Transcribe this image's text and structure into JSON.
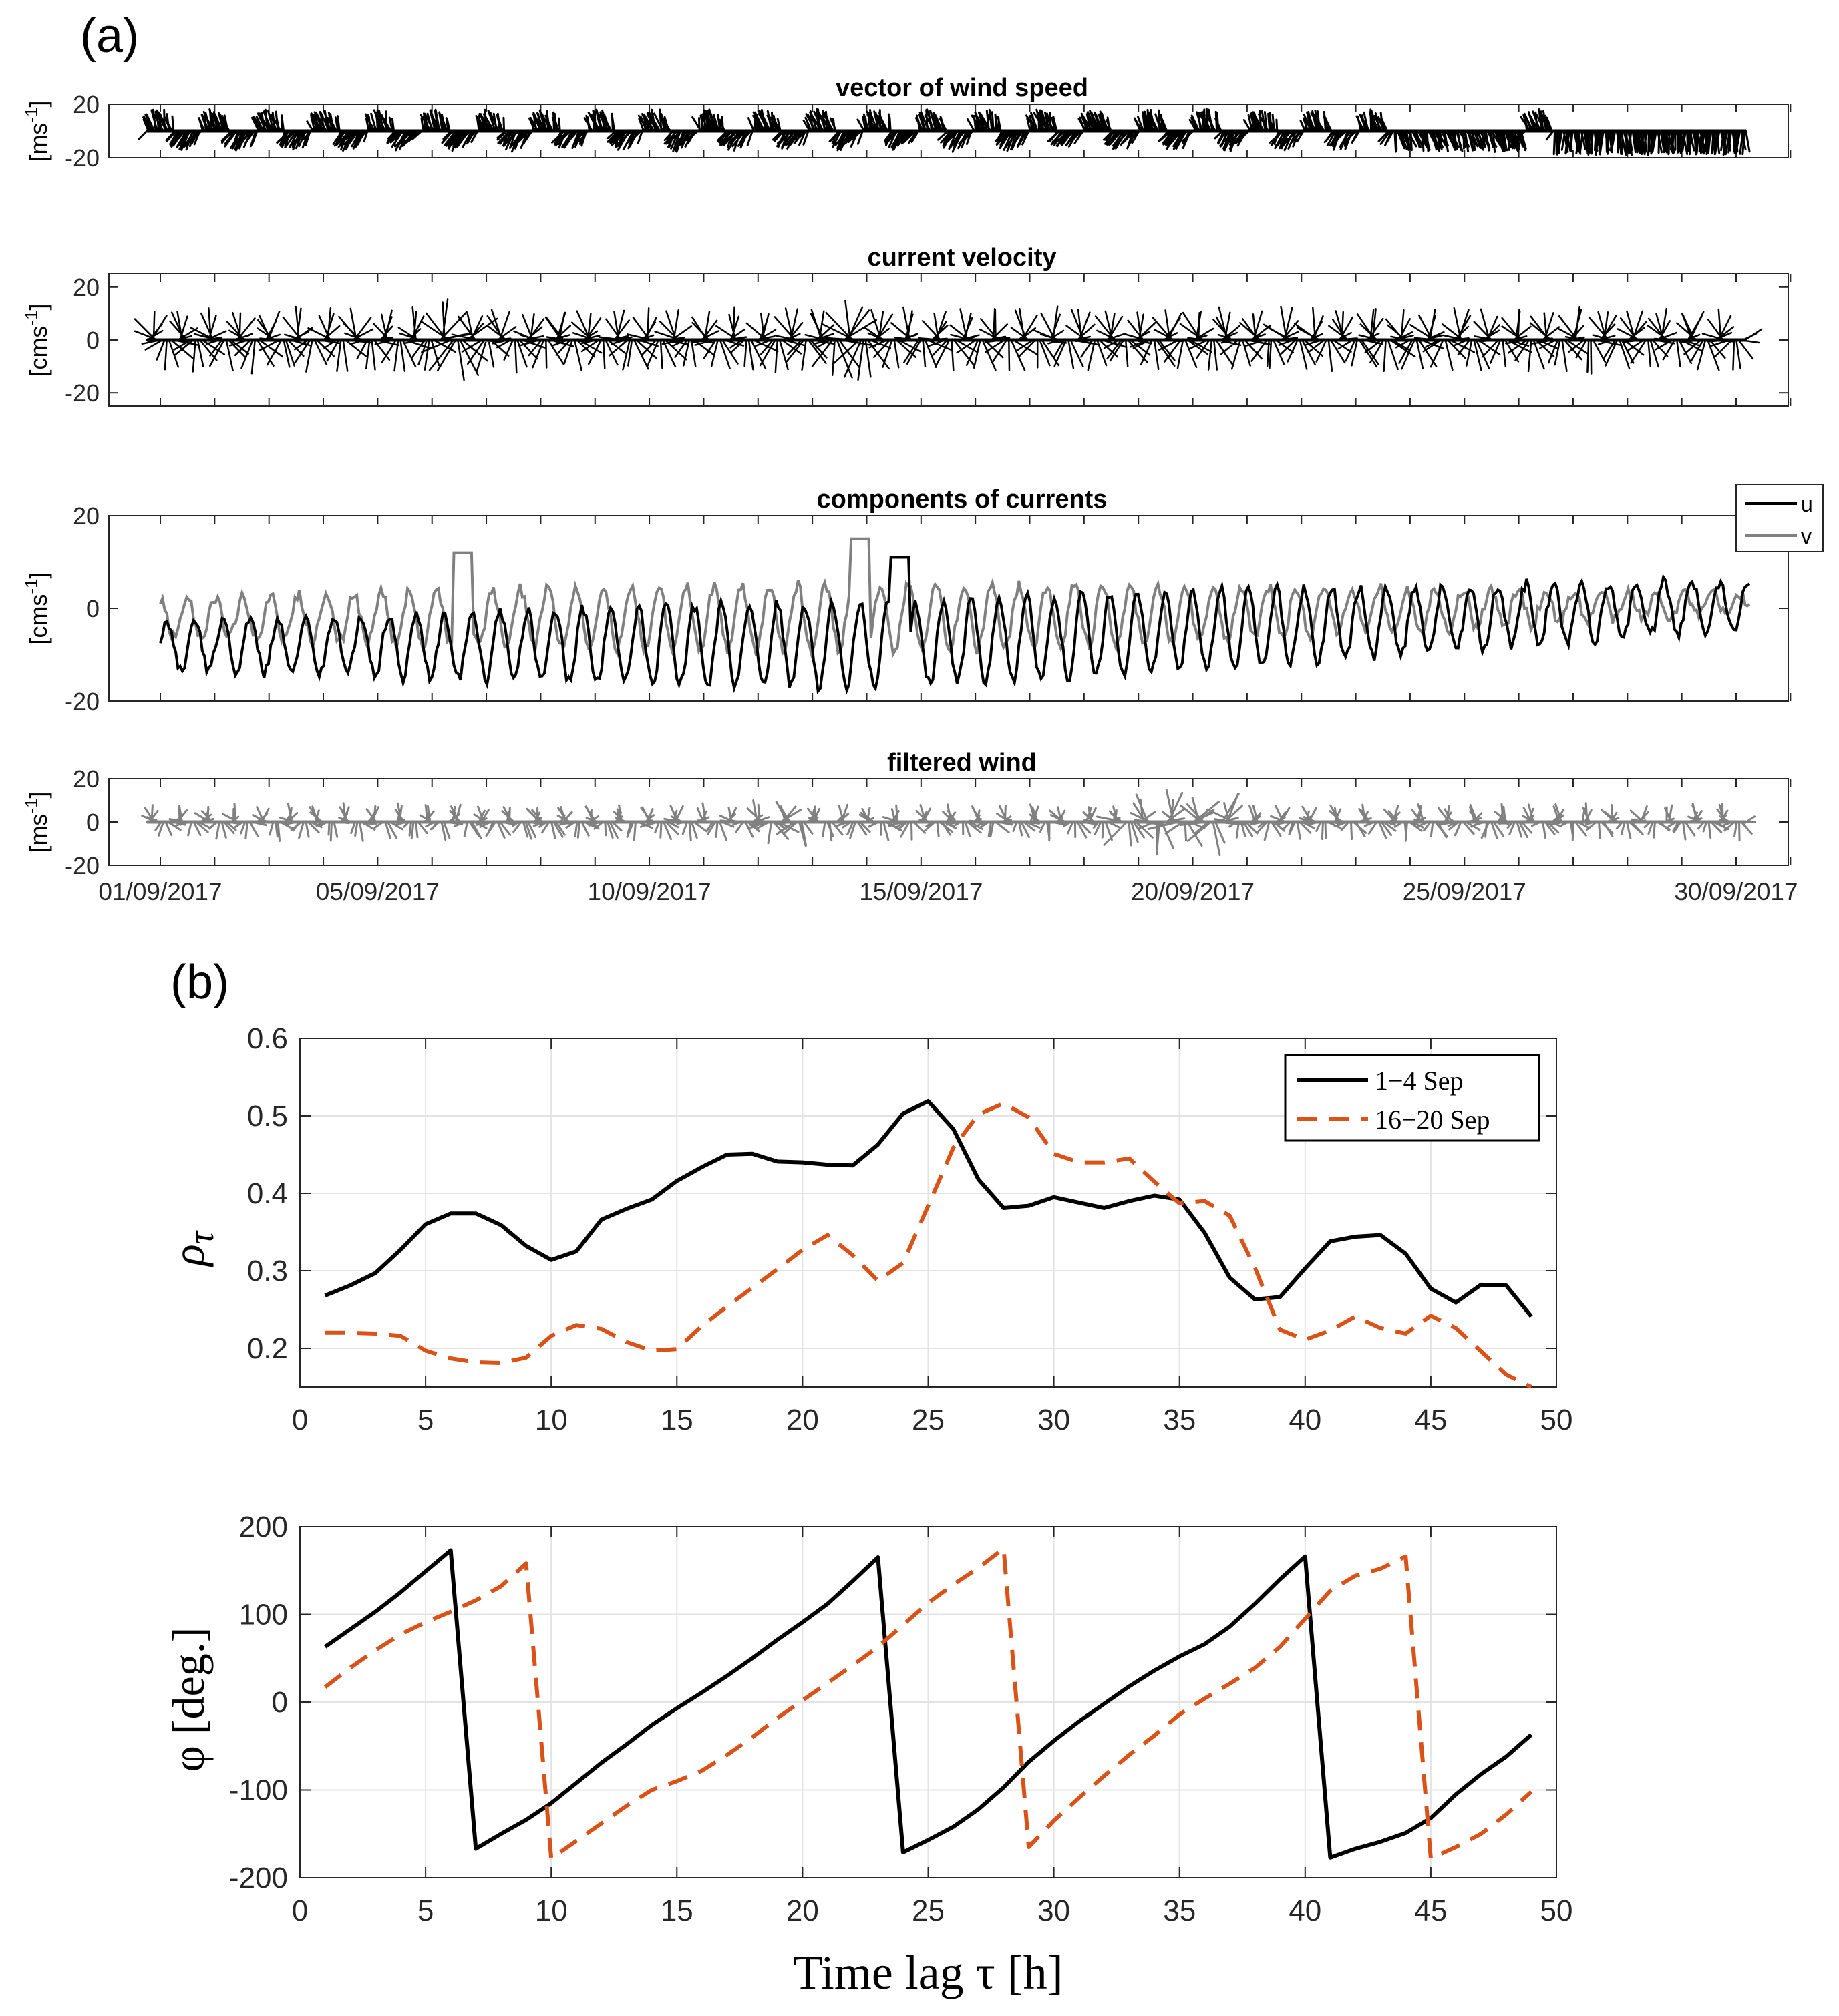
{
  "panel_a_label": "(a)",
  "panel_b_label": "(b)",
  "colors": {
    "black": "#000000",
    "gray": "#808080",
    "orange": "#D95319",
    "grid": "#e3e3e3",
    "axis": "#262626"
  },
  "chart_data": [
    {
      "type": "line",
      "id": "wind-stick",
      "title": "vector of wind speed",
      "ylabel": "[ms",
      "ylabel_sup": "-1",
      "ylabel_end": "]",
      "ylim": [
        -20,
        20
      ],
      "yticks": [
        -20,
        20
      ],
      "xlim": [
        0,
        31
      ],
      "description_mode": "stick plot",
      "color": "#000000"
    },
    {
      "type": "line",
      "id": "current-stick",
      "title": "current velocity",
      "ylabel": "[cms",
      "ylabel_sup": "-1",
      "ylabel_end": "]",
      "ylim": [
        -25,
        25
      ],
      "yticks": [
        -20,
        0,
        20
      ],
      "xlim": [
        0,
        31
      ],
      "color": "#000000"
    },
    {
      "type": "line",
      "id": "current-components",
      "title": "components of currents",
      "ylabel": "[cms",
      "ylabel_sup": "-1",
      "ylabel_end": "]",
      "ylim": [
        -20,
        20
      ],
      "yticks": [
        -20,
        0,
        20
      ],
      "xlim": [
        0,
        31
      ],
      "legend": [
        "u",
        "v"
      ],
      "legend_position": "outside-top-right",
      "series_colors": [
        "#000000",
        "#808080"
      ]
    },
    {
      "type": "line",
      "id": "filtered-wind",
      "title": "filtered wind",
      "ylabel": "[ms",
      "ylabel_sup": "-1",
      "ylabel_end": "]",
      "ylim": [
        -20,
        20
      ],
      "yticks": [
        -20,
        0,
        20
      ],
      "xlim": [
        0,
        31
      ],
      "xtick_days": [
        0,
        4,
        9,
        14,
        19,
        24,
        29
      ],
      "xtick_labels": [
        "01/09/2017",
        "05/09/2017",
        "10/09/2017",
        "15/09/2017",
        "20/09/2017",
        "25/09/2017",
        "30/09/2017"
      ],
      "color": "#808080"
    },
    {
      "type": "line",
      "id": "correlation",
      "ylabel": "ρ",
      "ylabel_sub": "τ",
      "xlim": [
        0,
        50
      ],
      "ylim": [
        0.15,
        0.6
      ],
      "xticks": [
        0,
        5,
        10,
        15,
        20,
        25,
        30,
        35,
        40,
        45,
        50
      ],
      "yticks": [
        0.2,
        0.3,
        0.4,
        0.5,
        0.6
      ],
      "ytick_labels": [
        "0.2",
        "0.3",
        "0.4",
        "0.5",
        "0.6"
      ],
      "legend_position": "top-right",
      "x": [
        1,
        2,
        3,
        4,
        5,
        6,
        7,
        8,
        9,
        10,
        11,
        12,
        13,
        14,
        15,
        16,
        17,
        18,
        19,
        20,
        21,
        22,
        23,
        24,
        25,
        26,
        27,
        28,
        29,
        30,
        31,
        32,
        33,
        34,
        35,
        36,
        37,
        38,
        39,
        40,
        41,
        42,
        43,
        44,
        45,
        46,
        47,
        48,
        49
      ],
      "series": [
        {
          "name": "1−4 Sep",
          "color": "#000000",
          "dash": false,
          "values": [
            0.268,
            0.281,
            0.297,
            0.327,
            0.36,
            0.374,
            0.374,
            0.359,
            0.332,
            0.314,
            0.325,
            0.366,
            0.38,
            0.392,
            0.416,
            0.434,
            0.45,
            0.451,
            0.441,
            0.44,
            0.437,
            0.436,
            0.463,
            0.503,
            0.519,
            0.483,
            0.418,
            0.381,
            0.384,
            0.395,
            0.388,
            0.381,
            0.39,
            0.397,
            0.392,
            0.349,
            0.291,
            0.263,
            0.266,
            0.303,
            0.338,
            0.344,
            0.346,
            0.322,
            0.277,
            0.259,
            0.282,
            0.281,
            0.241
          ]
        },
        {
          "name": "16−20 Sep",
          "color": "#D95319",
          "dash": true,
          "values": [
            0.22,
            0.22,
            0.219,
            0.216,
            0.197,
            0.187,
            0.182,
            0.181,
            0.188,
            0.216,
            0.23,
            0.225,
            0.208,
            0.197,
            0.199,
            0.229,
            0.254,
            0.278,
            0.302,
            0.327,
            0.346,
            0.32,
            0.287,
            0.31,
            0.384,
            0.459,
            0.502,
            0.516,
            0.498,
            0.451,
            0.44,
            0.44,
            0.445,
            0.415,
            0.387,
            0.39,
            0.371,
            0.304,
            0.224,
            0.211,
            0.223,
            0.241,
            0.226,
            0.219,
            0.242,
            0.226,
            0.196,
            0.166,
            0.148
          ]
        }
      ]
    },
    {
      "type": "line",
      "id": "phase",
      "ylabel": "φ [deg.]",
      "xlabel": "Time lag τ [h]",
      "xlim": [
        0,
        50
      ],
      "ylim": [
        -200,
        200
      ],
      "xticks": [
        0,
        5,
        10,
        15,
        20,
        25,
        30,
        35,
        40,
        45,
        50
      ],
      "yticks": [
        -200,
        -100,
        0,
        100,
        200
      ],
      "x": [
        1,
        2,
        3,
        4,
        5,
        6,
        7,
        8,
        9,
        10,
        11,
        12,
        13,
        14,
        15,
        16,
        17,
        18,
        19,
        20,
        21,
        22,
        23,
        24,
        25,
        26,
        27,
        28,
        29,
        30,
        31,
        32,
        33,
        34,
        35,
        36,
        37,
        38,
        39,
        40,
        41,
        42,
        43,
        44,
        45,
        46,
        47,
        48,
        49
      ],
      "series": [
        {
          "name": "1−4 Sep",
          "color": "#000000",
          "dash": false,
          "values": [
            63,
            83,
            103,
            125,
            149,
            173,
            -167,
            -150,
            -134,
            -115,
            -92,
            -69,
            -48,
            -26,
            -7,
            11,
            30,
            50,
            71,
            91,
            112,
            138,
            165,
            -171,
            -157,
            -142,
            -122,
            -97,
            -68,
            -44,
            -22,
            -2,
            18,
            36,
            52,
            66,
            86,
            112,
            140,
            166,
            -177,
            -167,
            -159,
            -149,
            -132,
            -105,
            -82,
            -62,
            -37
          ]
        },
        {
          "name": "16−20 Sep",
          "color": "#D95319",
          "dash": true,
          "values": [
            17,
            39,
            59,
            77,
            91,
            103,
            116,
            132,
            158,
            -178,
            -158,
            -138,
            -118,
            -100,
            -90,
            -78,
            -60,
            -40,
            -18,
            2,
            22,
            42,
            63,
            88,
            113,
            134,
            153,
            175,
            -165,
            -135,
            -109,
            -84,
            -60,
            -38,
            -14,
            4,
            21,
            39,
            63,
            95,
            127,
            144,
            152,
            166,
            -178,
            -165,
            -150,
            -128,
            -102
          ]
        }
      ]
    }
  ]
}
